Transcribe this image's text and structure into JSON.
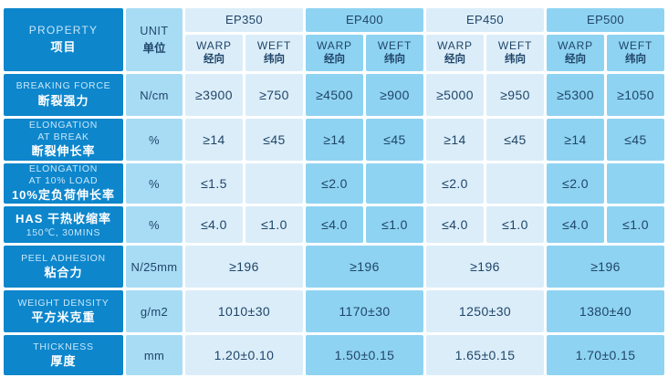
{
  "colors": {
    "property_blue": "#0d86cc",
    "unit_blue": "#a8dcf5",
    "group_light": "#dbedf9",
    "group_medium": "#8fd3f2",
    "value_text": "#1f4569",
    "divider": "#ffffff"
  },
  "header": {
    "property": {
      "en": "PROPERTY",
      "zh": "项目"
    },
    "unit": {
      "en": "UNIT",
      "zh": "单位"
    },
    "groups": [
      {
        "label": "EP350"
      },
      {
        "label": "EP400"
      },
      {
        "label": "EP450"
      },
      {
        "label": "EP500"
      }
    ],
    "warp": {
      "en": "WARP",
      "zh": "经向"
    },
    "weft": {
      "en": "WEFT",
      "zh": "纬向"
    }
  },
  "rows": [
    {
      "property_en": "BREAKING FORCE",
      "property_zh": "断裂强力",
      "unit": "N/cm",
      "layout": "split",
      "values": [
        "≥3900",
        "≥750",
        "≥4500",
        "≥900",
        "≥5000",
        "≥950",
        "≥5300",
        "≥1050"
      ]
    },
    {
      "property_en": "ELONGATION\nAT BREAK",
      "property_zh": "断裂伸长率",
      "unit": "%",
      "layout": "split",
      "values": [
        "≥14",
        "≤45",
        "≥14",
        "≤45",
        "≥14",
        "≤45",
        "≥14",
        "≤45"
      ]
    },
    {
      "property_en": "ELONGATION\nAT 10% LOAD",
      "property_zh": "10%定负荷伸长率",
      "unit": "%",
      "layout": "split",
      "values": [
        "≤1.5",
        "",
        "≤2.0",
        "",
        "≤2.0",
        "",
        "≤2.0",
        ""
      ]
    },
    {
      "property_zh": "HAS  干热收缩率",
      "property_en": "150℃, 30MINS",
      "unit": "%",
      "layout": "split",
      "values": [
        "≤4.0",
        "≤1.0",
        "≤4.0",
        "≤1.0",
        "≤4.0",
        "≤1.0",
        "≤4.0",
        "≤1.0"
      ]
    },
    {
      "property_en": "PEEL ADHESION",
      "property_zh": "粘合力",
      "unit": "N/25mm",
      "layout": "merged",
      "values": [
        "≥196",
        "≥196",
        "≥196",
        "≥196"
      ]
    },
    {
      "property_en": "WEIGHT DENSITY",
      "property_zh": "平方米克重",
      "unit": "g/m2",
      "layout": "merged",
      "values": [
        "1010±30",
        "1170±30",
        "1250±30",
        "1380±40"
      ]
    },
    {
      "property_en": "THICKNESS",
      "property_zh": "厚度",
      "unit": "mm",
      "layout": "merged",
      "values": [
        "1.20±0.10",
        "1.50±0.15",
        "1.65±0.15",
        "1.70±0.15"
      ]
    }
  ]
}
